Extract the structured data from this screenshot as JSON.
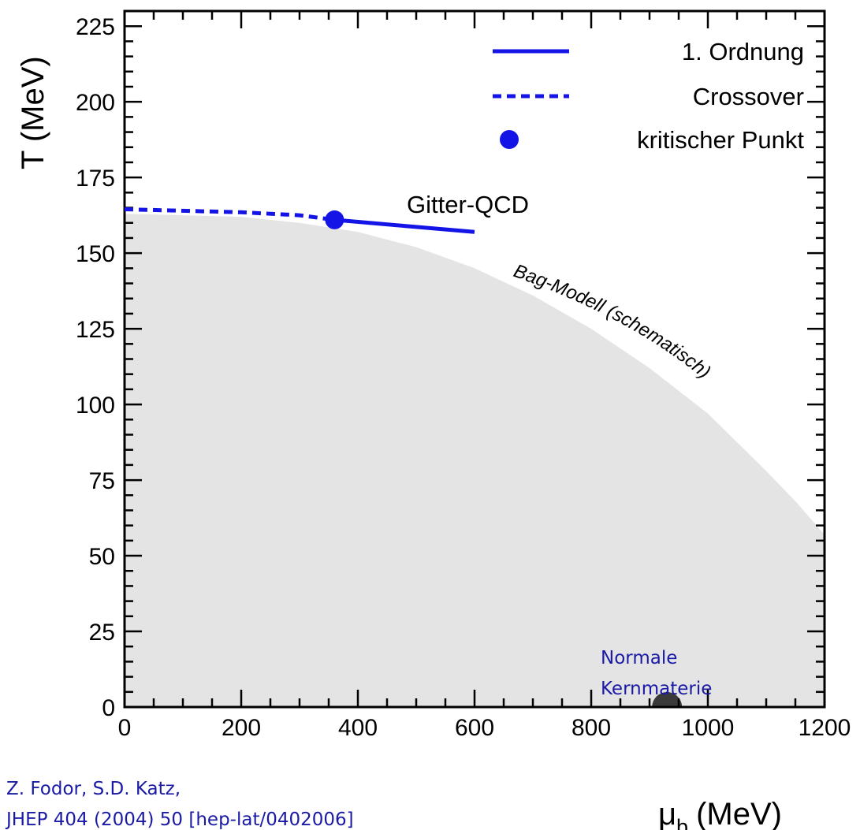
{
  "chart_data": {
    "type": "line",
    "x_axis": {
      "label_symbol": "μ",
      "label_subscript": "b",
      "label_unit": "(MeV)",
      "range": [
        0,
        1200
      ],
      "major_ticks": [
        0,
        200,
        400,
        600,
        800,
        1000,
        1200
      ],
      "minor_step": 50
    },
    "y_axis": {
      "label": "T (MeV)",
      "range": [
        0,
        230
      ],
      "major_ticks": [
        0,
        25,
        50,
        75,
        100,
        125,
        150,
        175,
        200,
        225
      ],
      "minor_step": 5
    },
    "grid": false,
    "legend_position": "top-right",
    "legend": [
      {
        "label": "1. Ordnung",
        "style": "solid-line"
      },
      {
        "label": "Crossover",
        "style": "dashed-line"
      },
      {
        "label": "kritischer Punkt",
        "style": "dot"
      }
    ],
    "series": [
      {
        "name": "Crossover",
        "style": "dashed",
        "color": "#1414e6",
        "x": [
          0,
          100,
          200,
          300,
          360
        ],
        "y": [
          164.5,
          164,
          163.5,
          162.5,
          161
        ]
      },
      {
        "name": "1. Ordnung",
        "style": "solid",
        "color": "#1414e6",
        "x": [
          360,
          480,
          600
        ],
        "y": [
          161,
          159,
          157
        ]
      }
    ],
    "critical_point": {
      "x": 360,
      "y": 161,
      "color": "#1414e6"
    },
    "bag_model_region": {
      "color": "#e4e4e4",
      "x": [
        0,
        200,
        300,
        400,
        500,
        600,
        700,
        800,
        900,
        1000,
        1100,
        1150,
        1200
      ],
      "y": [
        163,
        162,
        160,
        157,
        152,
        145,
        136,
        125,
        112,
        97,
        78,
        68,
        57
      ]
    },
    "normal_nuclear_matter": {
      "x": 930,
      "y": 0,
      "color": "#3a3a3a"
    },
    "annotations": {
      "lattice": "Gitter-QCD",
      "bag_model": "Bag-Modell (schematisch)",
      "normal_matter_line1": "Normale",
      "normal_matter_line2": "Kernmaterie"
    }
  },
  "citation": {
    "line1": "Z. Fodor, S.D. Katz,",
    "line2": "JHEP 404 (2004) 50 [hep-lat/0402006]"
  },
  "colors": {
    "curve": "#1414e6",
    "bag_region": "#e4e4e4",
    "annotation_blue": "#1a1aa6",
    "nuclear_matter_dot": "#3a3a3a"
  }
}
